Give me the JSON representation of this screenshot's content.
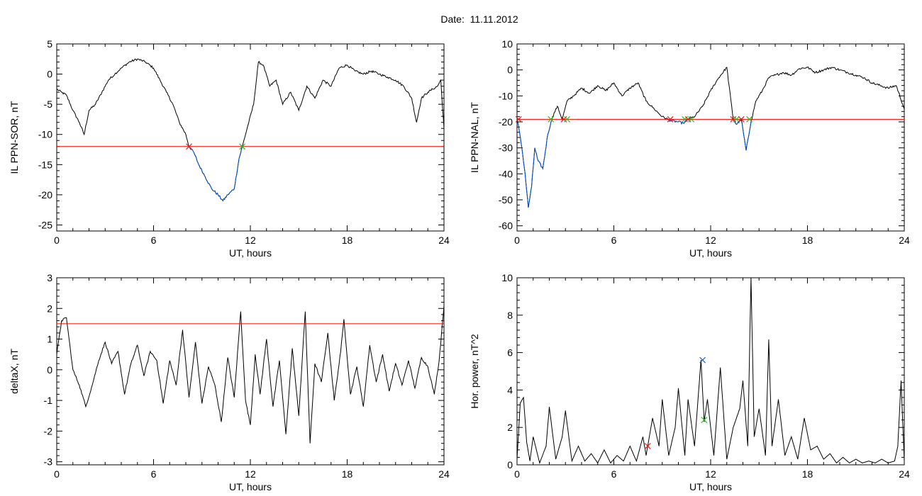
{
  "title": "Date:  11.11.2012",
  "colors": {
    "trace": "#000000",
    "threshold": "#ff0000",
    "below": "#0050d0",
    "marker_start": "#e02020",
    "marker_end": "#20c020",
    "marker_peak": "#2060e0"
  },
  "chart_data": [
    {
      "type": "line",
      "ylabel": "IL PPN-SOR, nT",
      "xlabel": "UT, hours",
      "xlim": [
        0,
        24
      ],
      "ylim": [
        -26,
        5
      ],
      "xticks": [
        0,
        6,
        12,
        18,
        24
      ],
      "yticks": [
        5,
        0,
        -5,
        -10,
        -15,
        -20,
        -25
      ],
      "threshold": -12,
      "x": [
        0,
        0.3,
        0.6,
        1.0,
        1.4,
        1.7,
        2.0,
        2.4,
        2.8,
        3.2,
        3.6,
        4.0,
        4.5,
        5.0,
        5.5,
        6.0,
        6.4,
        6.8,
        7.2,
        7.6,
        8.0,
        8.2,
        8.5,
        8.8,
        9.2,
        9.6,
        10.0,
        10.3,
        10.6,
        11.0,
        11.3,
        11.5,
        11.8,
        12.2,
        12.5,
        12.8,
        13.2,
        13.6,
        14.0,
        14.5,
        15.0,
        15.5,
        16.0,
        16.5,
        17.0,
        17.5,
        18.0,
        18.5,
        19.0,
        19.5,
        20.0,
        20.5,
        21.0,
        21.5,
        22.0,
        22.3,
        22.6,
        23.0,
        23.3,
        23.6,
        23.8,
        24.0
      ],
      "y": [
        -2.5,
        -3,
        -3.5,
        -6,
        -8,
        -10,
        -6,
        -5,
        -3,
        -1,
        0,
        1,
        2,
        2.5,
        2,
        1,
        -1,
        -3,
        -5,
        -8,
        -10,
        -12,
        -13,
        -15,
        -17,
        -19,
        -20,
        -21,
        -20,
        -19,
        -14,
        -12,
        -9,
        -5,
        2,
        1.5,
        -2,
        -1,
        -5,
        -3,
        -6,
        -2,
        -4,
        -1,
        -2,
        1,
        1.5,
        0.5,
        0,
        0.5,
        0,
        -0.5,
        -1,
        -2,
        -4,
        -8,
        -4,
        -3,
        -2.5,
        -2,
        -1,
        -9
      ],
      "markers": [
        {
          "x": 8.2,
          "y": -12,
          "kind": "start"
        },
        {
          "x": 11.5,
          "y": -12,
          "kind": "end"
        }
      ]
    },
    {
      "type": "line",
      "ylabel": "IL PPN-NAL, nT",
      "xlabel": "UT, hours",
      "xlim": [
        0,
        24
      ],
      "ylim": [
        -62,
        10
      ],
      "xticks": [
        0,
        6,
        12,
        18,
        24
      ],
      "yticks": [
        10,
        0,
        -10,
        -20,
        -30,
        -40,
        -50,
        -60
      ],
      "threshold": -19,
      "x": [
        0,
        0.1,
        0.3,
        0.5,
        0.7,
        0.9,
        1.1,
        1.3,
        1.6,
        1.9,
        2.2,
        2.5,
        2.8,
        3.1,
        3.5,
        4.0,
        4.5,
        5.0,
        5.5,
        6.0,
        6.5,
        7.0,
        7.5,
        8.0,
        8.5,
        9.0,
        9.5,
        10.0,
        10.3,
        10.6,
        11.0,
        11.5,
        12.0,
        12.5,
        13.0,
        13.4,
        13.6,
        13.9,
        14.2,
        14.5,
        14.8,
        15.2,
        15.6,
        16.0,
        16.5,
        17.0,
        17.5,
        18.0,
        18.5,
        19.0,
        19.5,
        20.0,
        20.5,
        21.0,
        21.5,
        22.0,
        22.5,
        23.0,
        23.5,
        24.0
      ],
      "y": [
        -19,
        -22,
        -30,
        -40,
        -53,
        -45,
        -30,
        -35,
        -38,
        -25,
        -18,
        -14,
        -19,
        -12,
        -10,
        -7,
        -9,
        -6,
        -8,
        -5,
        -10,
        -7,
        -5,
        -12,
        -15,
        -18,
        -19.5,
        -20,
        -20.5,
        -19,
        -18,
        -14,
        -8,
        -3,
        1,
        -19,
        -21,
        -19,
        -31,
        -20,
        -12,
        -8,
        -3,
        -2,
        -1,
        -2,
        0.5,
        1,
        -1,
        0,
        1,
        0,
        -1,
        -2,
        -3,
        -5,
        -6,
        -7,
        -6,
        -15
      ],
      "markers": [
        {
          "x": 0.1,
          "y": -19,
          "kind": "start"
        },
        {
          "x": 2.1,
          "y": -19,
          "kind": "end"
        },
        {
          "x": 2.9,
          "y": -19,
          "kind": "start"
        },
        {
          "x": 3.1,
          "y": -19,
          "kind": "end"
        },
        {
          "x": 9.5,
          "y": -19,
          "kind": "start"
        },
        {
          "x": 10.4,
          "y": -19,
          "kind": "end"
        },
        {
          "x": 10.6,
          "y": -19,
          "kind": "start"
        },
        {
          "x": 10.8,
          "y": -19,
          "kind": "end"
        },
        {
          "x": 13.4,
          "y": -19,
          "kind": "start"
        },
        {
          "x": 13.6,
          "y": -19,
          "kind": "end"
        },
        {
          "x": 13.9,
          "y": -19,
          "kind": "start"
        },
        {
          "x": 14.4,
          "y": -19,
          "kind": "end"
        }
      ]
    },
    {
      "type": "line",
      "ylabel": "deltaX, nT",
      "xlabel": "UT, hours",
      "xlim": [
        0,
        24
      ],
      "ylim": [
        -3.1,
        3
      ],
      "xticks": [
        0,
        6,
        12,
        18,
        24
      ],
      "yticks": [
        3,
        2,
        1,
        0,
        -1,
        -2,
        -3
      ],
      "threshold": 1.5,
      "x": [
        0,
        0.3,
        0.6,
        1.0,
        1.4,
        1.8,
        2.2,
        2.6,
        3.0,
        3.4,
        3.8,
        4.2,
        4.6,
        5.0,
        5.4,
        5.8,
        6.2,
        6.6,
        7.0,
        7.4,
        7.8,
        8.2,
        8.6,
        9.0,
        9.4,
        9.8,
        10.2,
        10.6,
        11.0,
        11.4,
        11.7,
        12.0,
        12.3,
        12.6,
        13.0,
        13.4,
        13.8,
        14.2,
        14.6,
        15.0,
        15.4,
        15.7,
        16.0,
        16.4,
        16.8,
        17.2,
        17.6,
        17.8,
        18.2,
        18.6,
        19.0,
        19.4,
        19.8,
        20.2,
        20.6,
        21.0,
        21.4,
        21.8,
        22.2,
        22.6,
        23.0,
        23.4,
        23.7,
        24.0
      ],
      "y": [
        0.5,
        1.6,
        1.7,
        0,
        -0.5,
        -1.2,
        -0.5,
        0.3,
        0.9,
        0.2,
        0.6,
        -0.8,
        0.2,
        0.8,
        -0.2,
        0.6,
        0.3,
        -1.1,
        0.3,
        -0.5,
        1.3,
        -0.9,
        0.9,
        -1.1,
        0.1,
        -0.5,
        -1.7,
        0.4,
        -0.9,
        1.9,
        -1,
        -1.8,
        0.5,
        -0.8,
        1,
        -1.2,
        0.3,
        -2.1,
        0.7,
        -1.5,
        1.9,
        -2.4,
        0.2,
        -0.4,
        1.2,
        -1.0,
        0.6,
        1.65,
        -0.8,
        0.1,
        -1.2,
        0.8,
        -0.4,
        0.5,
        -0.7,
        0.2,
        -0.5,
        0.3,
        -0.6,
        0.4,
        0.1,
        -0.8,
        0.3,
        2.1
      ],
      "markers": []
    },
    {
      "type": "line",
      "ylabel": "Hor. power, nT^2",
      "xlabel": "UT, hours",
      "xlim": [
        0,
        24
      ],
      "ylim": [
        0,
        10
      ],
      "xticks": [
        0,
        6,
        12,
        18,
        24
      ],
      "yticks": [
        10,
        8,
        6,
        4,
        2,
        0
      ],
      "threshold": null,
      "x": [
        0,
        0.2,
        0.4,
        0.6,
        0.8,
        1.0,
        1.4,
        1.8,
        2.0,
        2.4,
        2.8,
        3.0,
        3.4,
        3.8,
        4.2,
        4.6,
        5.0,
        5.4,
        5.8,
        6.2,
        6.6,
        7.0,
        7.4,
        7.8,
        8.0,
        8.4,
        8.8,
        9.0,
        9.4,
        9.8,
        10.0,
        10.4,
        10.6,
        11.0,
        11.4,
        11.6,
        11.8,
        12.2,
        12.6,
        13.0,
        13.4,
        13.8,
        14.0,
        14.3,
        14.5,
        14.7,
        15.0,
        15.4,
        15.6,
        15.8,
        16.2,
        16.6,
        17.0,
        17.4,
        17.8,
        18.2,
        18.6,
        19.0,
        19.4,
        19.8,
        20.2,
        20.6,
        21.0,
        21.4,
        21.8,
        22.2,
        22.6,
        23.0,
        23.4,
        23.6,
        23.8,
        24.0
      ],
      "y": [
        0.3,
        3.3,
        3.6,
        1.2,
        0.2,
        1.5,
        0.1,
        1.0,
        3.1,
        0.3,
        1.5,
        2.9,
        0.2,
        1.0,
        0.2,
        0.6,
        0.1,
        0.8,
        0.1,
        0.5,
        0.2,
        1.0,
        0.2,
        1.5,
        0.5,
        2.5,
        1.0,
        3.5,
        0.5,
        2.0,
        4.1,
        0.5,
        3.5,
        1.0,
        5.6,
        2.3,
        3.5,
        0.5,
        5.2,
        0.3,
        2.0,
        3.0,
        4.5,
        1.0,
        10,
        1.5,
        3.0,
        0.5,
        6.7,
        1.0,
        3.5,
        0.5,
        1.5,
        0.3,
        2.5,
        0.8,
        1.0,
        0.3,
        0.6,
        0.1,
        0.4,
        0.1,
        0.3,
        0.1,
        0.2,
        0.1,
        0.3,
        0.1,
        0.2,
        1.0,
        4.5,
        0.2
      ],
      "markers": [
        {
          "x": 8.1,
          "y": 1.0,
          "kind": "start"
        },
        {
          "x": 11.5,
          "y": 5.6,
          "kind": "peak"
        },
        {
          "x": 11.6,
          "y": 2.4,
          "kind": "end"
        }
      ]
    }
  ]
}
